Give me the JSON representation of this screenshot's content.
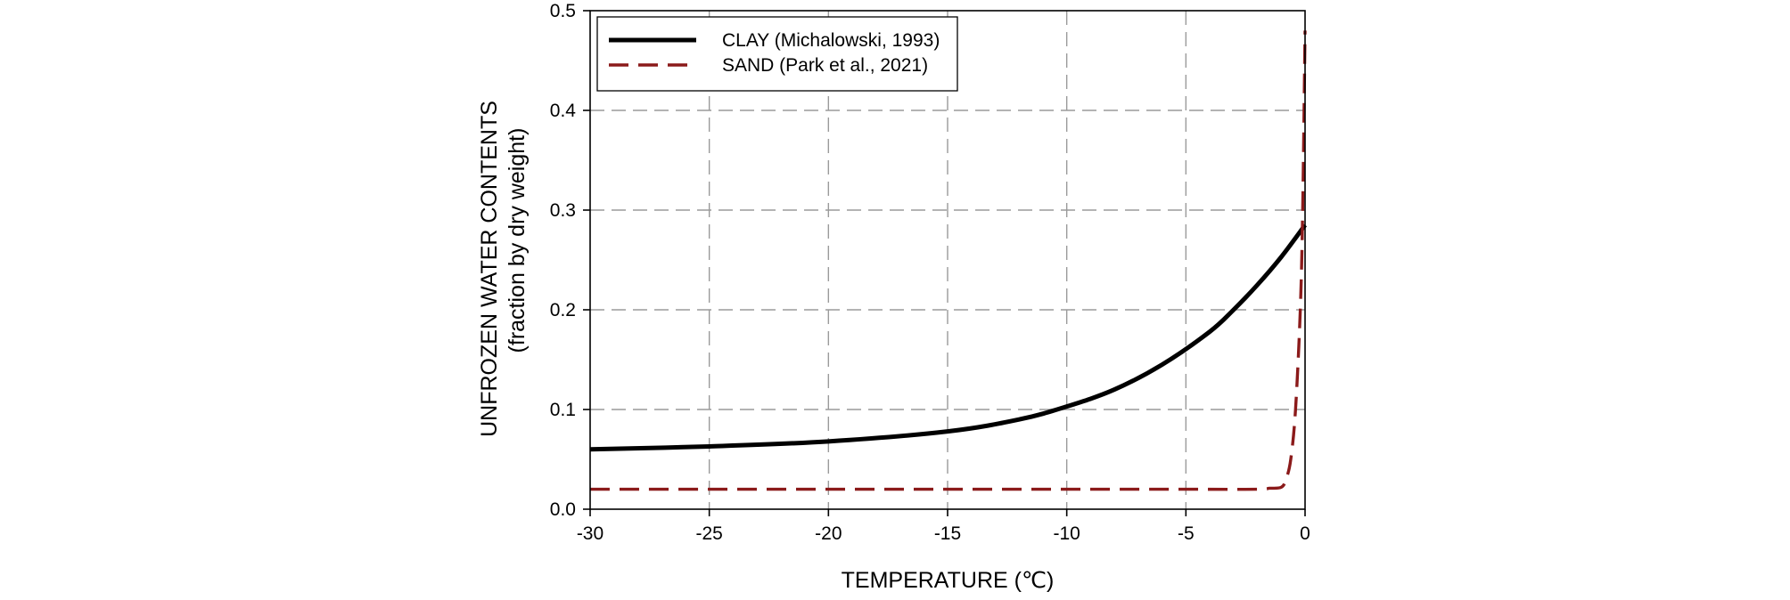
{
  "chart_data": {
    "type": "line",
    "xlabel": "TEMPERATURE (℃)",
    "ylabel": "UNFROZEN WATER CONTENTS",
    "ylabel_sub": "(fraction by dry weight)",
    "xlim": [
      -30,
      0
    ],
    "ylim": [
      0,
      0.5
    ],
    "xticks": [
      "-30",
      "-25",
      "-20",
      "-15",
      "-10",
      "-5",
      "0"
    ],
    "yticks": [
      "0.0",
      "0.1",
      "0.2",
      "0.3",
      "0.4",
      "0.5"
    ],
    "grid": true,
    "legend_position": "top-left",
    "series": [
      {
        "name": "CLAY (Michalowski, 1993)",
        "color": "#000000",
        "style": "solid",
        "x": [
          -30,
          -25,
          -20,
          -15,
          -12,
          -10,
          -8,
          -6,
          -4,
          -3,
          -2,
          -1,
          0
        ],
        "y": [
          0.06,
          0.063,
          0.068,
          0.078,
          0.09,
          0.103,
          0.12,
          0.145,
          0.178,
          0.2,
          0.225,
          0.253,
          0.285
        ]
      },
      {
        "name": "SAND (Park et al., 2021)",
        "color": "#8b1a1a",
        "style": "dashed",
        "x": [
          -30,
          -25,
          -20,
          -15,
          -10,
          -5,
          -2,
          -1.5,
          -1,
          -0.8,
          -0.6,
          -0.4,
          -0.2,
          -0.1,
          0
        ],
        "y": [
          0.02,
          0.02,
          0.02,
          0.02,
          0.02,
          0.02,
          0.02,
          0.021,
          0.022,
          0.03,
          0.05,
          0.1,
          0.2,
          0.3,
          0.48
        ]
      }
    ]
  }
}
